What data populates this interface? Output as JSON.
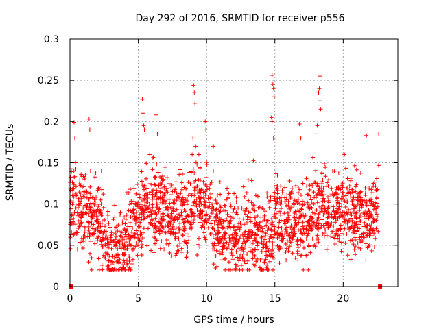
{
  "chart_data": {
    "type": "scatter",
    "title": "Day 292 of 2016, SRMTID for receiver p556",
    "xlabel": "GPS time / hours",
    "ylabel": "SRMTID / TECUs",
    "xlim": [
      0,
      24
    ],
    "ylim": [
      0,
      0.3
    ],
    "xticks": [
      0,
      5,
      10,
      15,
      20
    ],
    "xtick_labels": [
      "0",
      "5",
      "10",
      "15",
      "20"
    ],
    "yticks": [
      0,
      0.05,
      0.1,
      0.15,
      0.2,
      0.25,
      0.3
    ],
    "ytick_labels": [
      "0",
      "0.05",
      "0.1",
      "0.15",
      "0.2",
      "0.25",
      "0.3"
    ],
    "grid": true,
    "marker": "+",
    "color": "#ff0000",
    "zero_markers": [
      {
        "x": 0.05,
        "y": 0
      },
      {
        "x": 22.7,
        "y": 0
      }
    ],
    "trend": [
      [
        0.0,
        0.095
      ],
      [
        0.5,
        0.1
      ],
      [
        1.0,
        0.09
      ],
      [
        1.5,
        0.08
      ],
      [
        2.0,
        0.08
      ],
      [
        2.5,
        0.06
      ],
      [
        3.0,
        0.045
      ],
      [
        3.5,
        0.04
      ],
      [
        4.0,
        0.05
      ],
      [
        4.5,
        0.07
      ],
      [
        5.0,
        0.085
      ],
      [
        5.5,
        0.09
      ],
      [
        6.0,
        0.1
      ],
      [
        6.5,
        0.1
      ],
      [
        7.0,
        0.09
      ],
      [
        7.5,
        0.08
      ],
      [
        8.0,
        0.08
      ],
      [
        8.5,
        0.085
      ],
      [
        9.0,
        0.1
      ],
      [
        9.5,
        0.1
      ],
      [
        10.0,
        0.09
      ],
      [
        10.5,
        0.075
      ],
      [
        11.0,
        0.07
      ],
      [
        11.5,
        0.065
      ],
      [
        12.0,
        0.06
      ],
      [
        12.5,
        0.06
      ],
      [
        13.0,
        0.065
      ],
      [
        13.5,
        0.07
      ],
      [
        14.0,
        0.055
      ],
      [
        14.5,
        0.06
      ],
      [
        15.0,
        0.08
      ],
      [
        15.5,
        0.085
      ],
      [
        16.0,
        0.08
      ],
      [
        16.5,
        0.08
      ],
      [
        17.0,
        0.075
      ],
      [
        17.5,
        0.08
      ],
      [
        18.0,
        0.09
      ],
      [
        18.5,
        0.095
      ],
      [
        19.0,
        0.09
      ],
      [
        19.5,
        0.085
      ],
      [
        20.0,
        0.095
      ],
      [
        20.5,
        0.09
      ],
      [
        21.0,
        0.085
      ],
      [
        21.5,
        0.08
      ],
      [
        22.0,
        0.085
      ],
      [
        22.6,
        0.09
      ]
    ],
    "spikes": [
      {
        "x": 0.3,
        "y": 0.199
      },
      {
        "x": 0.35,
        "y": 0.18
      },
      {
        "x": 0.4,
        "y": 0.15
      },
      {
        "x": 1.4,
        "y": 0.203
      },
      {
        "x": 1.45,
        "y": 0.19
      },
      {
        "x": 1.5,
        "y": 0.14
      },
      {
        "x": 2.3,
        "y": 0.14
      },
      {
        "x": 5.3,
        "y": 0.227
      },
      {
        "x": 5.35,
        "y": 0.21
      },
      {
        "x": 5.4,
        "y": 0.195
      },
      {
        "x": 5.45,
        "y": 0.19
      },
      {
        "x": 5.5,
        "y": 0.185
      },
      {
        "x": 6.3,
        "y": 0.208
      },
      {
        "x": 6.4,
        "y": 0.185
      },
      {
        "x": 9.05,
        "y": 0.244
      },
      {
        "x": 9.1,
        "y": 0.235
      },
      {
        "x": 9.15,
        "y": 0.222
      },
      {
        "x": 9.0,
        "y": 0.18
      },
      {
        "x": 9.2,
        "y": 0.17
      },
      {
        "x": 9.9,
        "y": 0.2
      },
      {
        "x": 9.95,
        "y": 0.19
      },
      {
        "x": 10.5,
        "y": 0.17
      },
      {
        "x": 14.8,
        "y": 0.256
      },
      {
        "x": 14.85,
        "y": 0.245
      },
      {
        "x": 14.9,
        "y": 0.24
      },
      {
        "x": 14.95,
        "y": 0.23
      },
      {
        "x": 14.75,
        "y": 0.205
      },
      {
        "x": 14.8,
        "y": 0.2
      },
      {
        "x": 14.9,
        "y": 0.18
      },
      {
        "x": 16.8,
        "y": 0.197
      },
      {
        "x": 16.9,
        "y": 0.18
      },
      {
        "x": 18.3,
        "y": 0.255
      },
      {
        "x": 18.25,
        "y": 0.24
      },
      {
        "x": 18.2,
        "y": 0.235
      },
      {
        "x": 18.3,
        "y": 0.225
      },
      {
        "x": 18.35,
        "y": 0.215
      },
      {
        "x": 18.1,
        "y": 0.195
      },
      {
        "x": 18.0,
        "y": 0.185
      },
      {
        "x": 21.7,
        "y": 0.183
      },
      {
        "x": 22.6,
        "y": 0.185
      }
    ]
  }
}
